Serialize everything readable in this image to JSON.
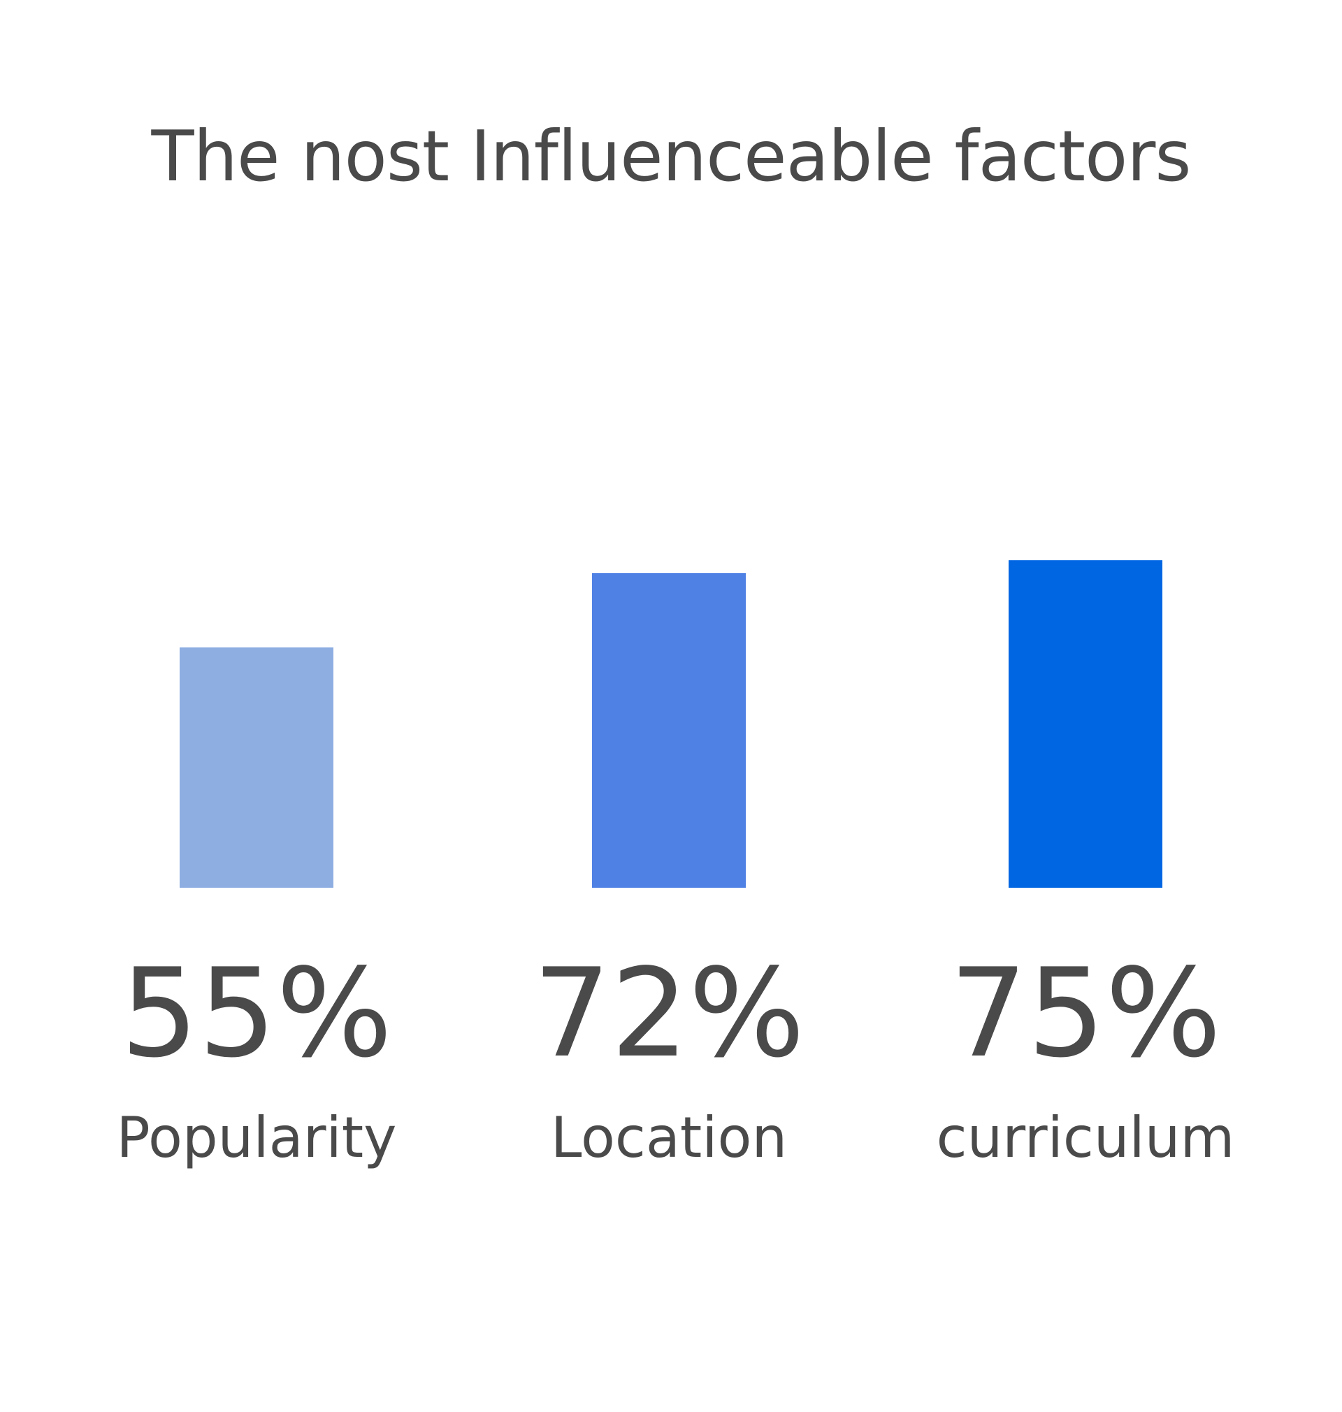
{
  "chart_data": {
    "type": "bar",
    "title": "The nost Influenceable factors",
    "categories": [
      "Popularity",
      "Location",
      "curriculum"
    ],
    "values": [
      55,
      72,
      75
    ],
    "value_labels": [
      "55%",
      "72%",
      "75%"
    ],
    "colors": [
      "#8eaee2",
      "#4f80e4",
      "#0066e2"
    ],
    "text_color": "#4a4a4a",
    "xlabel": "",
    "ylabel": "",
    "ylim": [
      0,
      100
    ],
    "grid": false,
    "axes_visible": false
  }
}
